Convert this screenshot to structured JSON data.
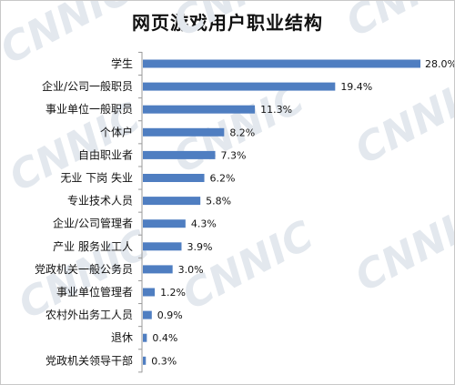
{
  "chart_data": {
    "type": "bar",
    "orientation": "horizontal",
    "title": "网页游戏用户职业结构",
    "categories": [
      "学生",
      "企业/公司一般职员",
      "事业单位一般职员",
      "个体户",
      "自由职业者",
      "无业 下岗 失业",
      "专业技术人员",
      "企业/公司管理者",
      "产业 服务业工人",
      "党政机关一般公务员",
      "事业单位管理者",
      "农村外出务工人员",
      "退休",
      "党政机关领导干部"
    ],
    "values": [
      28.0,
      19.4,
      11.3,
      8.2,
      7.3,
      6.2,
      5.8,
      4.3,
      3.9,
      3.0,
      1.2,
      0.9,
      0.4,
      0.3
    ],
    "value_labels": [
      "28.0%",
      "19.4%",
      "11.3%",
      "8.2%",
      "7.3%",
      "6.2%",
      "5.8%",
      "4.3%",
      "3.9%",
      "3.0%",
      "1.2%",
      "0.9%",
      "0.4%",
      "0.3%"
    ],
    "xlim": [
      0,
      28
    ],
    "grid": false,
    "legend": "none",
    "bar_color": "#4f7ec1"
  },
  "watermark": {
    "text": "CNNIC",
    "color": "#e3e8ee"
  }
}
